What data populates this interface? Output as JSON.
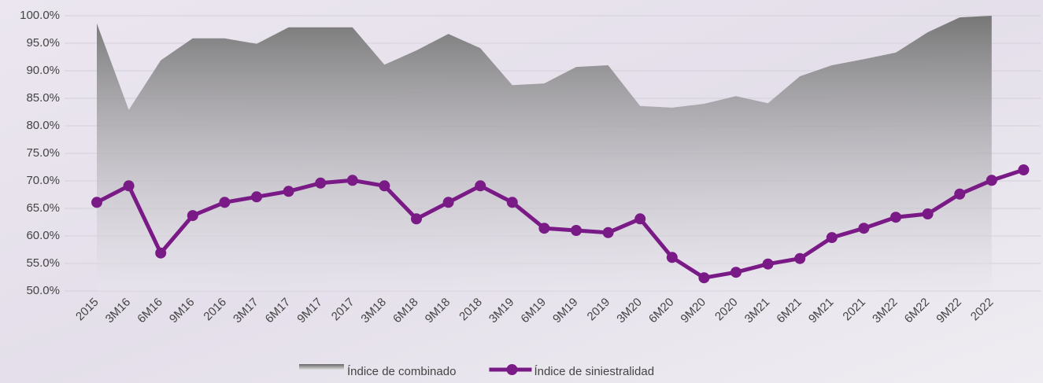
{
  "chart_data": {
    "type": "area-line",
    "categories": [
      "2015",
      "3M16",
      "6M16",
      "9M16",
      "2016",
      "3M17",
      "6M17",
      "9M17",
      "2017",
      "3M18",
      "6M18",
      "9M18",
      "2018",
      "3M19",
      "6M19",
      "9M19",
      "2019",
      "3M20",
      "6M20",
      "9M20",
      "2020",
      "3M21",
      "6M21",
      "9M21",
      "2021",
      "3M22",
      "6M22",
      "9M22",
      "2022",
      null
    ],
    "series": [
      {
        "name": "Índice de combinado",
        "type": "area",
        "color": "#7a7a7a",
        "values": [
          98.6,
          82.9,
          91.9,
          95.9,
          95.9,
          94.9,
          97.9,
          97.9,
          97.9,
          91.1,
          93.7,
          96.7,
          94.1,
          87.4,
          87.7,
          90.7,
          91.0,
          83.6,
          83.3,
          84.0,
          85.4,
          84.1,
          89.0,
          91.0,
          92.1,
          93.3,
          97.0,
          99.7,
          100.0,
          null
        ]
      },
      {
        "name": "Índice de siniestralidad",
        "type": "line",
        "color": "#7a1a86",
        "values": [
          66.1,
          69.1,
          56.9,
          63.7,
          66.1,
          67.1,
          68.1,
          69.6,
          70.1,
          69.1,
          63.1,
          66.1,
          69.1,
          66.1,
          61.4,
          61.0,
          60.6,
          63.1,
          56.1,
          52.4,
          53.4,
          54.9,
          55.9,
          59.7,
          61.4,
          63.4,
          64.0,
          67.6,
          70.1,
          72.0
        ]
      }
    ],
    "ylim": [
      50,
      100
    ],
    "yticks": [
      {
        "value": 50,
        "label": "50.0%"
      },
      {
        "value": 55,
        "label": "55.0%"
      },
      {
        "value": 60,
        "label": "60.0%"
      },
      {
        "value": 65,
        "label": "65.0%"
      },
      {
        "value": 70,
        "label": "70.0%"
      },
      {
        "value": 75,
        "label": "75.0%"
      },
      {
        "value": 80,
        "label": "80.0%"
      },
      {
        "value": 85,
        "label": "85.0%"
      },
      {
        "value": 90,
        "label": "90.0%"
      },
      {
        "value": 95,
        "label": "95.0%"
      },
      {
        "value": 100,
        "label": "100.0%"
      }
    ],
    "grid": true,
    "legend": "bottom"
  }
}
